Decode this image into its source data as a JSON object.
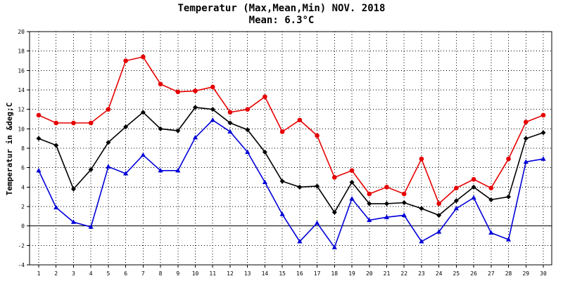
{
  "chart_data": {
    "type": "line",
    "title": "Temperatur (Max,Mean,Min) NOV. 2018",
    "subtitle": "Mean: 6.3°C",
    "xlabel": "",
    "ylabel": "Temperatur in &deg;C",
    "ylim": [
      -4,
      20
    ],
    "yticks": [
      -4,
      -2,
      0,
      2,
      4,
      6,
      8,
      10,
      12,
      14,
      16,
      18,
      20
    ],
    "grid": true,
    "categories": [
      "1",
      "2",
      "3",
      "4",
      "5",
      "6",
      "7",
      "8",
      "9",
      "10",
      "11",
      "12",
      "13",
      "14",
      "15",
      "16",
      "17",
      "18",
      "19",
      "20",
      "21",
      "22",
      "23",
      "24",
      "25",
      "26",
      "27",
      "28",
      "29",
      "30"
    ],
    "series": [
      {
        "name": "Max",
        "color": "#e60000",
        "marker": "circle",
        "values": [
          11.4,
          10.6,
          10.6,
          10.6,
          12.0,
          17.0,
          17.4,
          14.6,
          13.8,
          13.9,
          14.3,
          11.7,
          12.0,
          13.3,
          9.7,
          10.9,
          9.3,
          5.0,
          5.7,
          3.3,
          4.0,
          3.3,
          6.9,
          2.3,
          3.9,
          4.8,
          3.9,
          6.9,
          10.7,
          11.4
        ]
      },
      {
        "name": "Mean",
        "color": "#000000",
        "marker": "diamond",
        "values": [
          9.0,
          8.3,
          3.8,
          5.8,
          8.6,
          10.2,
          11.7,
          10.0,
          9.8,
          12.2,
          12.0,
          10.6,
          9.9,
          7.6,
          4.6,
          4.0,
          4.1,
          1.4,
          4.5,
          2.3,
          2.3,
          2.4,
          1.8,
          1.1,
          2.6,
          4.0,
          2.7,
          3.0,
          9.0,
          9.6
        ]
      },
      {
        "name": "Min",
        "color": "#0000d8",
        "marker": "triangle",
        "values": [
          5.7,
          1.9,
          0.4,
          -0.1,
          6.1,
          5.4,
          7.3,
          5.7,
          5.7,
          9.1,
          10.9,
          9.7,
          7.6,
          4.5,
          1.2,
          -1.6,
          0.3,
          -2.2,
          2.8,
          0.6,
          0.9,
          1.1,
          -1.6,
          -0.6,
          1.8,
          2.9,
          -0.7,
          -1.4,
          6.6,
          6.9
        ]
      }
    ]
  }
}
